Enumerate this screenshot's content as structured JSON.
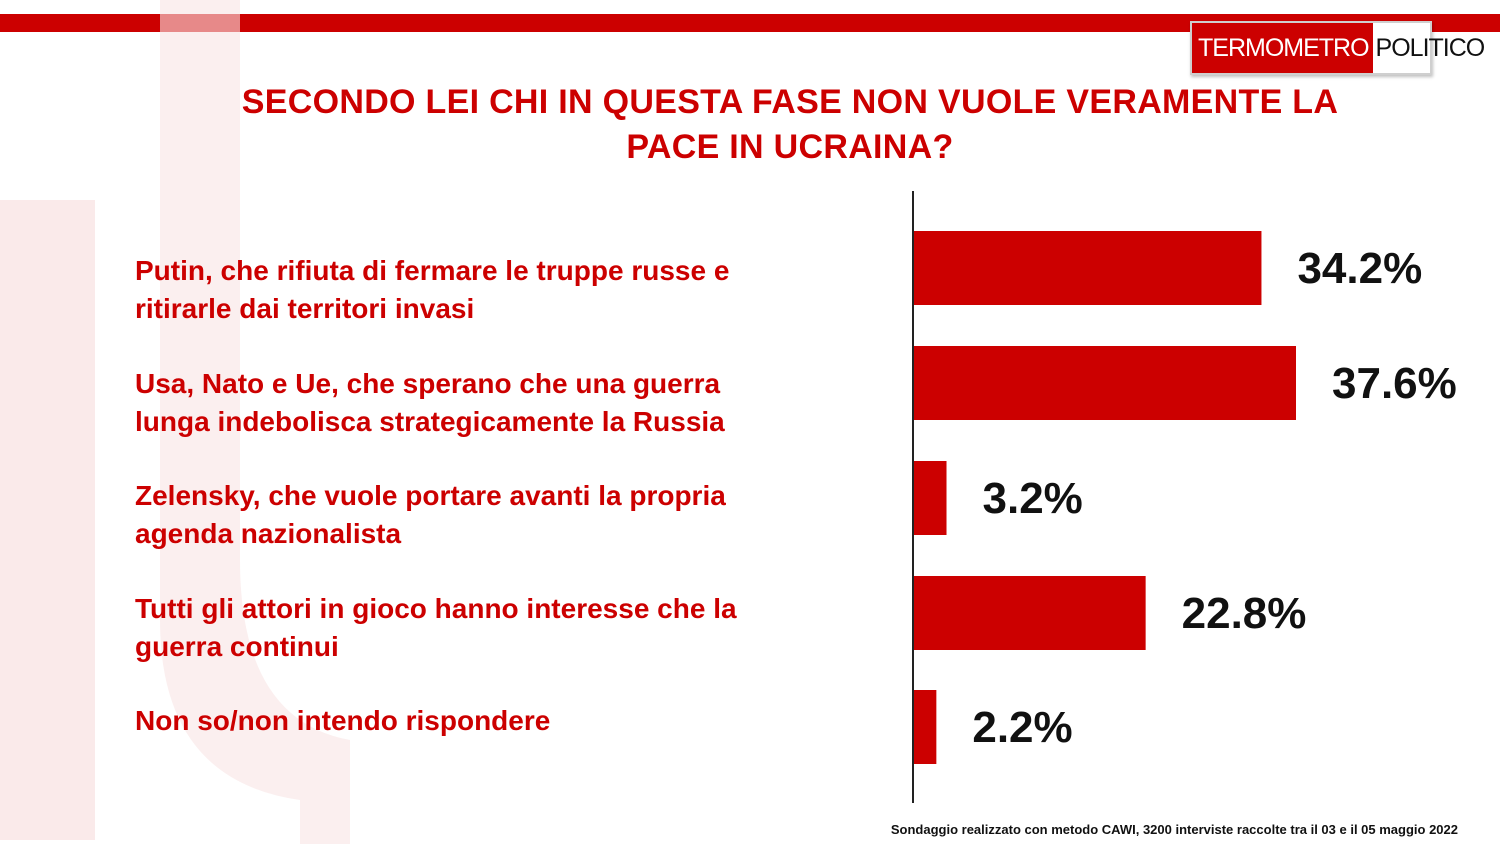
{
  "brand": {
    "logo_part1": "TERMOMETRO",
    "logo_part2": "POLITICO",
    "accent_color": "#cc0000"
  },
  "title_line1": "SECONDO LEI CHI IN QUESTA FASE NON VUOLE VERAMENTE LA",
  "title_line2": "PACE IN UCRAINA?",
  "chart_data": {
    "type": "bar",
    "orientation": "horizontal",
    "categories": [
      [
        "Putin, che rifiuta di fermare le truppe russe e",
        "ritirarle dai territori invasi"
      ],
      [
        "Usa, Nato e Ue, che sperano che una guerra",
        "lunga indebolisca strategicamente la Russia"
      ],
      [
        "Zelensky, che vuole portare avanti la propria",
        "agenda nazionalista"
      ],
      [
        "Tutti gli attori in gioco hanno interesse che la",
        "guerra continui"
      ],
      [
        "Non so/non intendo rispondere"
      ]
    ],
    "values": [
      34.2,
      37.6,
      3.2,
      22.8,
      2.2
    ],
    "value_labels": [
      "34.2%",
      "37.6%",
      "3.2%",
      "22.8%",
      "2.2%"
    ],
    "bar_color": "#cc0000",
    "xlim": [
      0,
      40
    ]
  },
  "footnote": "Sondaggio realizzato con metodo CAWI, 3200 interviste raccolte tra il 03 e il 05 maggio 2022"
}
